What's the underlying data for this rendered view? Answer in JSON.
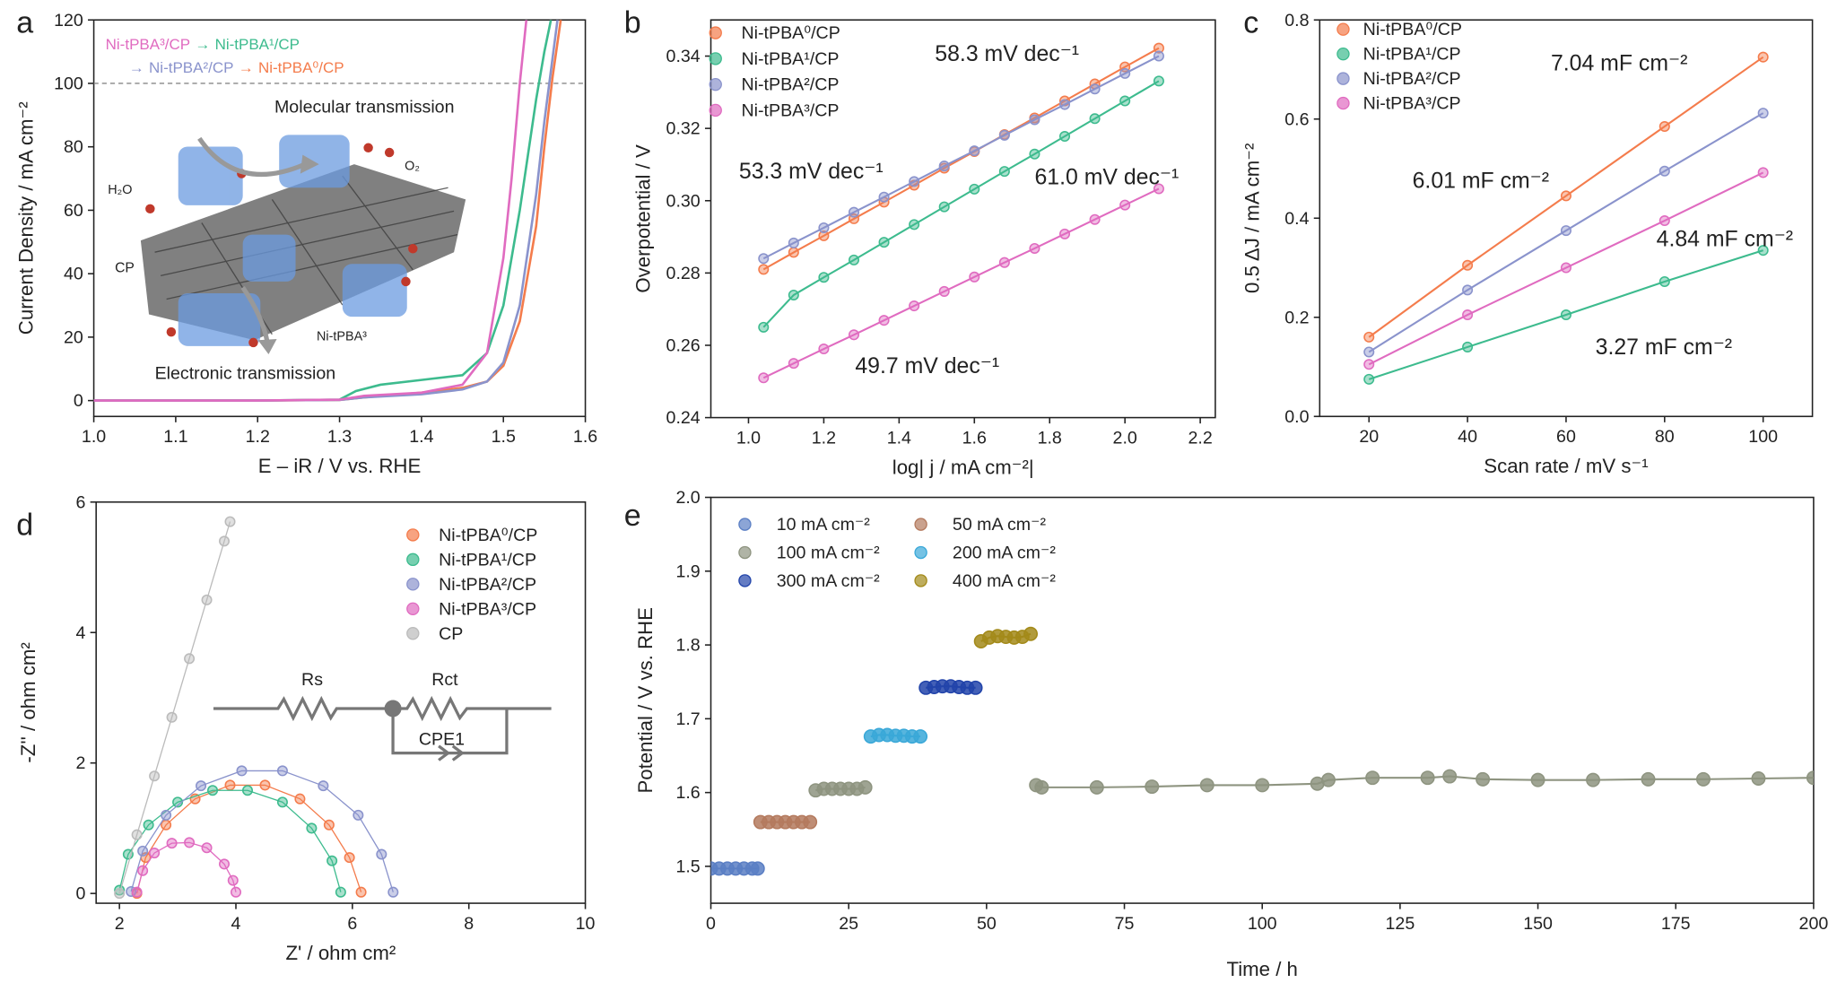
{
  "chart_data": [
    {
      "type": "line",
      "panel": "a",
      "xlabel": "E – iR / V vs. RHE",
      "ylabel": "Current Density / mA cm⁻²",
      "xlim": [
        1.0,
        1.6
      ],
      "ylim": [
        -5,
        120
      ],
      "xticks": [
        {
          "value": 1,
          "label": "1.0"
        },
        1.1,
        1.2,
        1.3,
        1.4,
        1.5,
        1.6
      ],
      "yticks": [
        0,
        20,
        40,
        60,
        80,
        100,
        120
      ],
      "hline": 100,
      "legend_separator": "→",
      "series": [
        {
          "name": "Ni-tPBA⁰/CP",
          "color": "#f47c4c",
          "x": [
            1.0,
            1.2,
            1.3,
            1.33,
            1.4,
            1.45,
            1.48,
            1.5,
            1.52,
            1.54,
            1.55,
            1.56,
            1.57
          ],
          "values": [
            0,
            0,
            0.2,
            1,
            2.5,
            4,
            6,
            11,
            25,
            55,
            80,
            102,
            120
          ]
        },
        {
          "name": "Ni-tPBA¹/CP",
          "color": "#3dbb8e",
          "x": [
            1.0,
            1.2,
            1.3,
            1.32,
            1.35,
            1.4,
            1.45,
            1.48,
            1.5,
            1.52,
            1.54,
            1.55,
            1.558
          ],
          "values": [
            0,
            0,
            0.3,
            3,
            5,
            6.5,
            8,
            15,
            30,
            60,
            95,
            110,
            120
          ]
        },
        {
          "name": "Ni-tPBA²/CP",
          "color": "#8a93cc",
          "x": [
            1.0,
            1.2,
            1.3,
            1.33,
            1.4,
            1.45,
            1.48,
            1.5,
            1.52,
            1.54,
            1.55,
            1.56,
            1.566
          ],
          "values": [
            0,
            0,
            0.2,
            1,
            2,
            3.5,
            6,
            12,
            30,
            65,
            88,
            108,
            120
          ]
        },
        {
          "name": "Ni-tPBA³/CP",
          "color": "#e06bc0",
          "x": [
            1.0,
            1.2,
            1.3,
            1.33,
            1.4,
            1.45,
            1.48,
            1.5,
            1.51,
            1.52,
            1.528
          ],
          "values": [
            0,
            0,
            0.3,
            1.5,
            2.5,
            5,
            15,
            45,
            70,
            100,
            120
          ]
        }
      ],
      "annotations": [
        {
          "text": "Molecular transmission",
          "color": "#111111"
        },
        {
          "text": "Electronic transmission",
          "color": "#111111"
        },
        {
          "text": "H₂O",
          "color": "#111111"
        },
        {
          "text": "O₂",
          "color": "#111111"
        },
        {
          "text": "CP",
          "color": "#111111"
        },
        {
          "text": "Ni-tPBA³",
          "color": "#111111"
        }
      ]
    },
    {
      "type": "scatter",
      "panel": "b",
      "xlabel": "log| j / mA cm⁻²|",
      "ylabel": "Overpotential / V",
      "xlim": [
        0.9,
        2.24
      ],
      "ylim": [
        0.24,
        0.35
      ],
      "xticks": [
        {
          "value": 1,
          "label": "1.0"
        },
        1.2,
        1.4,
        1.6,
        1.8,
        {
          "value": 2,
          "label": "2.0"
        },
        2.2
      ],
      "yticks": [
        0.24,
        0.26,
        0.28,
        {
          "value": 0.3,
          "label": "0.30"
        },
        0.32,
        0.34
      ],
      "x": [
        1.04,
        1.12,
        1.2,
        1.28,
        1.36,
        1.44,
        1.52,
        1.6,
        1.68,
        1.76,
        1.84,
        1.92,
        2.0,
        2.09
      ],
      "series": [
        {
          "name": "Ni-tPBA⁰/CP",
          "color": "#f47c4c",
          "values": [
            0.281,
            0.2857,
            0.2903,
            0.295,
            0.2996,
            0.3043,
            0.309,
            0.3136,
            0.3183,
            0.3229,
            0.3276,
            0.3323,
            0.337,
            0.3422
          ]
        },
        {
          "name": "Ni-tPBA¹/CP",
          "color": "#3dbb8e",
          "values": [
            0.265,
            0.2739,
            0.2788,
            0.2836,
            0.2885,
            0.2934,
            0.2983,
            0.3032,
            0.3081,
            0.3129,
            0.3178,
            0.3227,
            0.3276,
            0.3331
          ]
        },
        {
          "name": "Ni-tPBA²/CP",
          "color": "#8a93cc",
          "values": [
            0.284,
            0.2883,
            0.2925,
            0.2968,
            0.301,
            0.3053,
            0.3096,
            0.3138,
            0.3181,
            0.3224,
            0.3266,
            0.3309,
            0.3352,
            0.34
          ]
        },
        {
          "name": "Ni-tPBA³/CP",
          "color": "#e06bc0",
          "values": [
            0.251,
            0.255,
            0.259,
            0.2629,
            0.2669,
            0.2709,
            0.2749,
            0.2789,
            0.2829,
            0.2868,
            0.2908,
            0.2948,
            0.2988,
            0.3033
          ]
        }
      ],
      "annotations": [
        {
          "text": "58.3 mV dec⁻¹",
          "color": "#f47c4c"
        },
        {
          "text": "53.3 mV dec⁻¹",
          "color": "#8a93cc"
        },
        {
          "text": "61.0 mV dec⁻¹",
          "color": "#3dbb8e"
        },
        {
          "text": "49.7 mV dec⁻¹",
          "color": "#e06bc0"
        }
      ]
    },
    {
      "type": "scatter",
      "panel": "c",
      "xlabel": "Scan rate / mV s⁻¹",
      "ylabel": "0.5 ΔJ / mA cm⁻²",
      "xlim": [
        10,
        110
      ],
      "ylim": [
        0,
        0.8
      ],
      "xticks": [
        20,
        40,
        60,
        80,
        100
      ],
      "yticks": [
        {
          "value": 0,
          "label": "0.0"
        },
        0.2,
        0.4,
        0.6,
        0.8
      ],
      "x": [
        20,
        40,
        60,
        80,
        100
      ],
      "series": [
        {
          "name": "Ni-tPBA⁰/CP",
          "color": "#f47c4c",
          "values": [
            0.16,
            0.305,
            0.445,
            0.585,
            0.725
          ]
        },
        {
          "name": "Ni-tPBA¹/CP",
          "color": "#3dbb8e",
          "values": [
            0.075,
            0.14,
            0.205,
            0.272,
            0.335
          ]
        },
        {
          "name": "Ni-tPBA²/CP",
          "color": "#8a93cc",
          "values": [
            0.13,
            0.255,
            0.375,
            0.495,
            0.612
          ]
        },
        {
          "name": "Ni-tPBA³/CP",
          "color": "#e06bc0",
          "values": [
            0.105,
            0.205,
            0.3,
            0.395,
            0.492
          ]
        }
      ],
      "annotations": [
        {
          "text": "7.04 mF cm⁻²",
          "color": "#f47c4c"
        },
        {
          "text": "6.01 mF cm⁻²",
          "color": "#8a93cc"
        },
        {
          "text": "4.84 mF cm⁻²",
          "color": "#e06bc0"
        },
        {
          "text": "3.27 mF cm⁻²",
          "color": "#3dbb8e"
        }
      ]
    },
    {
      "type": "scatter",
      "panel": "d",
      "xlabel": "Z' / ohm cm²",
      "ylabel": "-Z'' / ohm cm²",
      "xlim": [
        1.6,
        10
      ],
      "ylim": [
        -0.15,
        6
      ],
      "xticks": [
        2,
        4,
        6,
        8,
        10
      ],
      "yticks": [
        0,
        2,
        4,
        6
      ],
      "series": [
        {
          "name": "Ni-tPBA⁰/CP",
          "color": "#f47c4c",
          "x": [
            2.3,
            2.45,
            2.8,
            3.3,
            3.9,
            4.5,
            5.1,
            5.6,
            5.95,
            6.15
          ],
          "values": [
            0,
            0.55,
            1.05,
            1.45,
            1.66,
            1.66,
            1.45,
            1.05,
            0.55,
            0.02
          ]
        },
        {
          "name": "Ni-tPBA¹/CP",
          "color": "#3dbb8e",
          "x": [
            2.0,
            2.15,
            2.5,
            3.0,
            3.6,
            4.2,
            4.8,
            5.3,
            5.65,
            5.8
          ],
          "values": [
            0.05,
            0.6,
            1.05,
            1.4,
            1.58,
            1.58,
            1.4,
            1.0,
            0.5,
            0.02
          ]
        },
        {
          "name": "Ni-tPBA²/CP",
          "color": "#8a93cc",
          "x": [
            2.2,
            2.4,
            2.8,
            3.4,
            4.1,
            4.8,
            5.5,
            6.1,
            6.5,
            6.7
          ],
          "values": [
            0.03,
            0.65,
            1.2,
            1.65,
            1.88,
            1.88,
            1.65,
            1.2,
            0.6,
            0.02
          ]
        },
        {
          "name": "Ni-tPBA³/CP",
          "color": "#e06bc0",
          "x": [
            2.3,
            2.4,
            2.6,
            2.9,
            3.2,
            3.5,
            3.8,
            3.95,
            4.0
          ],
          "values": [
            0.02,
            0.35,
            0.62,
            0.77,
            0.78,
            0.7,
            0.45,
            0.2,
            0.02
          ]
        },
        {
          "name": "CP",
          "color": "#bbbbbb",
          "x": [
            2.0,
            2.3,
            2.6,
            2.9,
            3.2,
            3.5,
            3.8,
            3.9
          ],
          "values": [
            0,
            0.9,
            1.8,
            2.7,
            3.6,
            4.5,
            5.4,
            5.7
          ]
        }
      ],
      "annotations": [
        {
          "text": "Rs",
          "color": "#888888"
        },
        {
          "text": "Rct",
          "color": "#888888"
        },
        {
          "text": "CPE1",
          "color": "#888888"
        }
      ]
    },
    {
      "type": "line",
      "panel": "e",
      "xlabel": "Time / h",
      "ylabel": "Potential / V vs. RHE",
      "xlim": [
        0,
        200
      ],
      "ylim": [
        1.45,
        2.0
      ],
      "xticks": [
        0,
        25,
        50,
        75,
        100,
        125,
        150,
        175,
        200
      ],
      "yticks": [
        1.5,
        1.6,
        1.7,
        1.8,
        1.9,
        {
          "value": 2,
          "label": "2.0"
        }
      ],
      "markers": true,
      "series": [
        {
          "name": "10 mA cm⁻²",
          "color": "#5b7fc4",
          "x": [
            0,
            1.5,
            3,
            4.5,
            6,
            7.5,
            8.5
          ],
          "values": [
            1.497,
            1.497,
            1.497,
            1.497,
            1.497,
            1.497,
            1.497
          ]
        },
        {
          "name": "50 mA cm⁻²",
          "color": "#b47a5e",
          "x": [
            9,
            10.5,
            12,
            13.5,
            15,
            16.5,
            18
          ],
          "values": [
            1.56,
            1.56,
            1.56,
            1.56,
            1.56,
            1.56,
            1.56
          ]
        },
        {
          "name": "100 mA cm⁻²",
          "color": "#8e9480",
          "x": [
            19,
            20.5,
            22,
            23.5,
            25,
            26.5,
            28,
            null,
            59,
            60,
            70,
            80,
            90,
            100,
            110,
            112,
            120,
            130,
            134,
            140,
            150,
            160,
            170,
            180,
            190,
            200
          ],
          "values": [
            1.603,
            1.605,
            1.605,
            1.605,
            1.605,
            1.605,
            1.607,
            null,
            1.61,
            1.607,
            1.607,
            1.608,
            1.61,
            1.61,
            1.612,
            1.617,
            1.62,
            1.62,
            1.622,
            1.618,
            1.617,
            1.617,
            1.618,
            1.618,
            1.619,
            1.62
          ]
        },
        {
          "name": "200 mA cm⁻²",
          "color": "#3aa8d8",
          "x": [
            29,
            30.5,
            32,
            33.5,
            35,
            36.5,
            38
          ],
          "values": [
            1.676,
            1.678,
            1.678,
            1.677,
            1.677,
            1.676,
            1.676
          ]
        },
        {
          "name": "300 mA cm⁻²",
          "color": "#2244aa",
          "x": [
            39,
            40.5,
            42,
            43.5,
            45,
            46.5,
            48
          ],
          "values": [
            1.742,
            1.743,
            1.744,
            1.744,
            1.743,
            1.742,
            1.742
          ]
        },
        {
          "name": "400 mA cm⁻²",
          "color": "#a38a1a",
          "x": [
            49,
            50.5,
            52,
            53.5,
            55,
            56.5,
            58
          ],
          "values": [
            1.805,
            1.81,
            1.812,
            1.811,
            1.81,
            1.811,
            1.815
          ]
        }
      ]
    }
  ]
}
